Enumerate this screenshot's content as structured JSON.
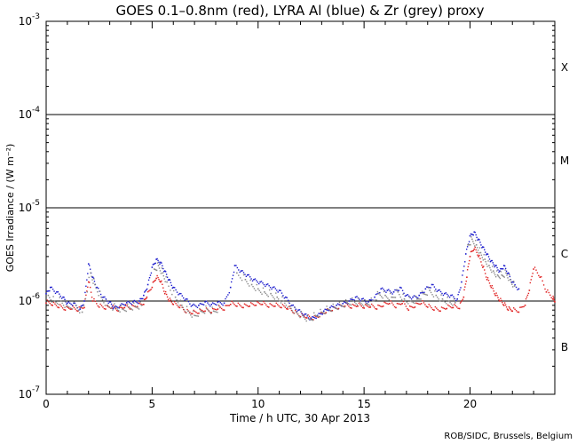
{
  "chart_data": {
    "type": "scatter",
    "title": "GOES 0.1–0.8nm (red), LYRA Al (blue) & Zr (grey) proxy",
    "xlabel": "Time / h UTC, 30 Apr 2013",
    "ylabel": "GOES Irradiance / (W m⁻²)",
    "credit": "ROB/SIDC, Brussels, Belgium",
    "xlim": [
      0,
      24
    ],
    "ylim": [
      1e-07,
      0.001
    ],
    "yscale": "log",
    "x_ticks": [
      "0",
      "5",
      "10",
      "15",
      "20"
    ],
    "x_tick_values": [
      0,
      5,
      10,
      15,
      20
    ],
    "y_ticks": [
      {
        "base": "10",
        "exp": "-7",
        "value": 1e-07
      },
      {
        "base": "10",
        "exp": "-6",
        "value": 1e-06
      },
      {
        "base": "10",
        "exp": "-5",
        "value": 1e-05
      },
      {
        "base": "10",
        "exp": "-4",
        "value": 0.0001
      },
      {
        "base": "10",
        "exp": "-3",
        "value": 0.001
      }
    ],
    "class_lines": [
      1e-06,
      1e-05,
      0.0001
    ],
    "flare_classes": [
      {
        "label": "X",
        "value": 0.00032
      },
      {
        "label": "M",
        "value": 3.2e-05
      },
      {
        "label": "C",
        "value": 3.2e-06
      },
      {
        "label": "B",
        "value": 3.2e-07
      }
    ],
    "series": [
      {
        "name": "GOES 0.1–0.8nm",
        "color": "#e02020",
        "points": [
          [
            0.0,
            9.5e-07
          ],
          [
            0.3,
            9e-07
          ],
          [
            0.6,
            8.5e-07
          ],
          [
            0.9,
            8e-07
          ],
          [
            1.2,
            8.2e-07
          ],
          [
            1.5,
            7.8e-07
          ],
          [
            1.8,
            8.5e-07
          ],
          [
            2.0,
            1.6e-06
          ],
          [
            2.2,
            1e-06
          ],
          [
            2.5,
            8.6e-07
          ],
          [
            2.8,
            8.2e-07
          ],
          [
            3.1,
            8.4e-07
          ],
          [
            3.4,
            7.8e-07
          ],
          [
            3.7,
            8.5e-07
          ],
          [
            4.0,
            8.2e-07
          ],
          [
            4.3,
            8.7e-07
          ],
          [
            4.6,
            9.2e-07
          ],
          [
            4.75,
            1.1e-06
          ],
          [
            5.0,
            1.4e-06
          ],
          [
            5.2,
            1.75e-06
          ],
          [
            5.4,
            1.6e-06
          ],
          [
            5.6,
            1.2e-06
          ],
          [
            5.8,
            1e-06
          ],
          [
            6.0,
            9.2e-07
          ],
          [
            6.3,
            8.5e-07
          ],
          [
            6.6,
            7.5e-07
          ],
          [
            6.9,
            7.3e-07
          ],
          [
            7.2,
            7.4e-07
          ],
          [
            7.5,
            7.8e-07
          ],
          [
            7.8,
            7.5e-07
          ],
          [
            8.1,
            8.2e-07
          ],
          [
            8.4,
            8e-07
          ],
          [
            8.7,
            9.2e-07
          ],
          [
            9.0,
            8.8e-07
          ],
          [
            9.3,
            8.5e-07
          ],
          [
            9.6,
            8.8e-07
          ],
          [
            9.9,
            9e-07
          ],
          [
            10.2,
            9.2e-07
          ],
          [
            10.5,
            8.6e-07
          ],
          [
            10.8,
            8.8e-07
          ],
          [
            11.1,
            8.5e-07
          ],
          [
            11.4,
            8.2e-07
          ],
          [
            11.7,
            7.4e-07
          ],
          [
            12.0,
            6.8e-07
          ],
          [
            12.3,
            6.6e-07
          ],
          [
            12.6,
            6.3e-07
          ],
          [
            12.9,
            6.8e-07
          ],
          [
            13.2,
            7.5e-07
          ],
          [
            13.5,
            7.9e-07
          ],
          [
            13.8,
            8.3e-07
          ],
          [
            14.1,
            8.8e-07
          ],
          [
            14.4,
            8.4e-07
          ],
          [
            14.7,
            8.8e-07
          ],
          [
            15.0,
            8.4e-07
          ],
          [
            15.3,
            8.6e-07
          ],
          [
            15.6,
            8.2e-07
          ],
          [
            15.9,
            8.8e-07
          ],
          [
            16.2,
            9.4e-07
          ],
          [
            16.5,
            8.5e-07
          ],
          [
            16.8,
            9.4e-07
          ],
          [
            17.1,
            8e-07
          ],
          [
            17.4,
            8.6e-07
          ],
          [
            17.7,
            9.4e-07
          ],
          [
            18.0,
            8.6e-07
          ],
          [
            18.3,
            8e-07
          ],
          [
            18.6,
            7.8e-07
          ],
          [
            18.9,
            8.3e-07
          ],
          [
            19.2,
            8.5e-07
          ],
          [
            19.5,
            8.3e-07
          ],
          [
            19.7,
            1.1e-06
          ],
          [
            19.85,
            1.8e-06
          ],
          [
            20.0,
            3e-06
          ],
          [
            20.2,
            3.6e-06
          ],
          [
            20.4,
            3e-06
          ],
          [
            20.6,
            2.3e-06
          ],
          [
            20.8,
            1.7e-06
          ],
          [
            21.0,
            1.4e-06
          ],
          [
            21.2,
            1.15e-06
          ],
          [
            21.4,
            1e-06
          ],
          [
            21.6,
            9e-07
          ],
          [
            21.8,
            8e-07
          ],
          [
            22.0,
            7.8e-07
          ],
          [
            22.3,
            7.6e-07
          ],
          [
            22.6,
            9e-07
          ],
          [
            22.8,
            1.3e-06
          ],
          [
            23.0,
            2.2e-06
          ],
          [
            23.3,
            1.8e-06
          ],
          [
            23.6,
            1.25e-06
          ],
          [
            23.9,
            1.05e-06
          ],
          [
            24.0,
            9.8e-07
          ]
        ]
      },
      {
        "name": "LYRA Al proxy",
        "color": "#1a1acc",
        "points": [
          [
            0.0,
            1.2e-06
          ],
          [
            0.2,
            1.4e-06
          ],
          [
            0.5,
            1.25e-06
          ],
          [
            0.8,
            1.1e-06
          ],
          [
            1.0,
            9.5e-07
          ],
          [
            1.3,
            9.5e-07
          ],
          [
            1.6,
            8.2e-07
          ],
          [
            1.8,
            1e-06
          ],
          [
            2.0,
            2.5e-06
          ],
          [
            2.2,
            1.8e-06
          ],
          [
            2.4,
            1.4e-06
          ],
          [
            2.7,
            1.1e-06
          ],
          [
            3.0,
            9.8e-07
          ],
          [
            3.2,
            8.5e-07
          ],
          [
            3.5,
            9e-07
          ],
          [
            3.8,
            9.6e-07
          ],
          [
            4.1,
            9.8e-07
          ],
          [
            4.4,
            1e-06
          ],
          [
            4.6,
            1.15e-06
          ],
          [
            4.8,
            1.5e-06
          ],
          [
            5.0,
            2.3e-06
          ],
          [
            5.2,
            2.8e-06
          ],
          [
            5.4,
            2.6e-06
          ],
          [
            5.6,
            2.1e-06
          ],
          [
            5.8,
            1.7e-06
          ],
          [
            6.0,
            1.4e-06
          ],
          [
            6.3,
            1.2e-06
          ],
          [
            6.6,
            1.05e-06
          ],
          [
            6.9,
            9e-07
          ],
          [
            7.2,
            9e-07
          ],
          [
            7.5,
            9.8e-07
          ],
          [
            7.8,
            9.2e-07
          ],
          [
            8.1,
            9.7e-07
          ],
          [
            8.4,
            9.5e-07
          ],
          [
            8.7,
            1.4e-06
          ],
          [
            8.9,
            2.4e-06
          ],
          [
            9.2,
            2.1e-06
          ],
          [
            9.5,
            1.9e-06
          ],
          [
            9.8,
            1.7e-06
          ],
          [
            10.1,
            1.6e-06
          ],
          [
            10.4,
            1.5e-06
          ],
          [
            10.7,
            1.4e-06
          ],
          [
            11.0,
            1.3e-06
          ],
          [
            11.3,
            1.1e-06
          ],
          [
            11.6,
            9e-07
          ],
          [
            11.9,
            8e-07
          ],
          [
            12.2,
            7.2e-07
          ],
          [
            12.5,
            6.5e-07
          ],
          [
            12.8,
            7e-07
          ],
          [
            13.1,
            7.8e-07
          ],
          [
            13.4,
            8.5e-07
          ],
          [
            13.7,
            9e-07
          ],
          [
            14.0,
            9.4e-07
          ],
          [
            14.3,
            1e-06
          ],
          [
            14.6,
            1.1e-06
          ],
          [
            14.9,
            1.05e-06
          ],
          [
            15.2,
            9.8e-07
          ],
          [
            15.5,
            1.1e-06
          ],
          [
            15.8,
            1.35e-06
          ],
          [
            16.1,
            1.3e-06
          ],
          [
            16.4,
            1.25e-06
          ],
          [
            16.7,
            1.4e-06
          ],
          [
            17.0,
            1.15e-06
          ],
          [
            17.3,
            1.1e-06
          ],
          [
            17.6,
            1.15e-06
          ],
          [
            17.9,
            1.35e-06
          ],
          [
            18.2,
            1.5e-06
          ],
          [
            18.5,
            1.3e-06
          ],
          [
            18.8,
            1.2e-06
          ],
          [
            19.1,
            1.15e-06
          ],
          [
            19.4,
            1.05e-06
          ],
          [
            19.6,
            1.6e-06
          ],
          [
            19.8,
            3.2e-06
          ],
          [
            20.0,
            5e-06
          ],
          [
            20.2,
            5.5e-06
          ],
          [
            20.4,
            4.6e-06
          ],
          [
            20.6,
            3.8e-06
          ],
          [
            20.8,
            3.2e-06
          ],
          [
            21.0,
            2.7e-06
          ],
          [
            21.2,
            2.4e-06
          ],
          [
            21.4,
            2.1e-06
          ],
          [
            21.6,
            2.4e-06
          ],
          [
            21.8,
            2e-06
          ],
          [
            22.0,
            1.6e-06
          ],
          [
            22.3,
            1.35e-06
          ]
        ]
      },
      {
        "name": "LYRA Zr proxy",
        "color": "#8a8a8a",
        "points": [
          [
            0.1,
            1.15e-06
          ],
          [
            0.4,
            1e-06
          ],
          [
            0.7,
            1e-06
          ],
          [
            1.0,
            8.8e-07
          ],
          [
            1.4,
            9e-07
          ],
          [
            1.7,
            7.6e-07
          ],
          [
            2.1,
            2e-06
          ],
          [
            2.3,
            1.5e-06
          ],
          [
            2.6,
            1.1e-06
          ],
          [
            2.9,
            9e-07
          ],
          [
            3.3,
            8.5e-07
          ],
          [
            3.6,
            8.2e-07
          ],
          [
            3.9,
            8.6e-07
          ],
          [
            4.2,
            8.8e-07
          ],
          [
            4.5,
            9e-07
          ],
          [
            5.1,
            2.2e-06
          ],
          [
            5.3,
            2.4e-06
          ],
          [
            5.5,
            2e-06
          ],
          [
            5.7,
            1.6e-06
          ],
          [
            6.1,
            1.1e-06
          ],
          [
            6.4,
            9e-07
          ],
          [
            6.7,
            7.8e-07
          ],
          [
            7.0,
            7e-07
          ],
          [
            7.3,
            7.8e-07
          ],
          [
            7.6,
            8.2e-07
          ],
          [
            7.9,
            7.8e-07
          ],
          [
            8.2,
            8.5e-07
          ],
          [
            9.0,
            2e-06
          ],
          [
            9.4,
            1.7e-06
          ],
          [
            9.7,
            1.5e-06
          ],
          [
            10.0,
            1.35e-06
          ],
          [
            10.3,
            1.25e-06
          ],
          [
            10.6,
            1.2e-06
          ],
          [
            10.9,
            1.1e-06
          ],
          [
            11.2,
            1e-06
          ],
          [
            11.5,
            8.8e-07
          ],
          [
            11.8,
            7.6e-07
          ],
          [
            12.1,
            7e-07
          ],
          [
            12.4,
            6.4e-07
          ],
          [
            12.7,
            7e-07
          ],
          [
            13.0,
            7.6e-07
          ],
          [
            13.3,
            8.2e-07
          ],
          [
            13.6,
            8.6e-07
          ],
          [
            13.9,
            9e-07
          ],
          [
            14.2,
            9.6e-07
          ],
          [
            14.5,
            1e-06
          ],
          [
            14.8,
            9.8e-07
          ],
          [
            15.1,
            9.4e-07
          ],
          [
            15.4,
            1e-06
          ],
          [
            15.7,
            1.2e-06
          ],
          [
            16.0,
            1.15e-06
          ],
          [
            16.3,
            1.1e-06
          ],
          [
            16.6,
            1.25e-06
          ],
          [
            16.9,
            1.05e-06
          ],
          [
            17.2,
            1e-06
          ],
          [
            17.5,
            1.05e-06
          ],
          [
            17.8,
            1.2e-06
          ],
          [
            18.1,
            1.3e-06
          ],
          [
            18.4,
            1.15e-06
          ],
          [
            18.7,
            1.05e-06
          ],
          [
            19.0,
            1e-06
          ],
          [
            19.3,
            9.6e-07
          ],
          [
            19.9,
            4e-06
          ],
          [
            20.1,
            4.6e-06
          ],
          [
            20.3,
            4e-06
          ],
          [
            20.5,
            3.3e-06
          ],
          [
            20.7,
            2.8e-06
          ],
          [
            20.9,
            2.4e-06
          ],
          [
            21.1,
            2.1e-06
          ],
          [
            21.3,
            1.9e-06
          ],
          [
            21.5,
            1.9e-06
          ],
          [
            21.7,
            2e-06
          ],
          [
            21.9,
            1.7e-06
          ],
          [
            22.1,
            1.45e-06
          ]
        ]
      }
    ]
  }
}
